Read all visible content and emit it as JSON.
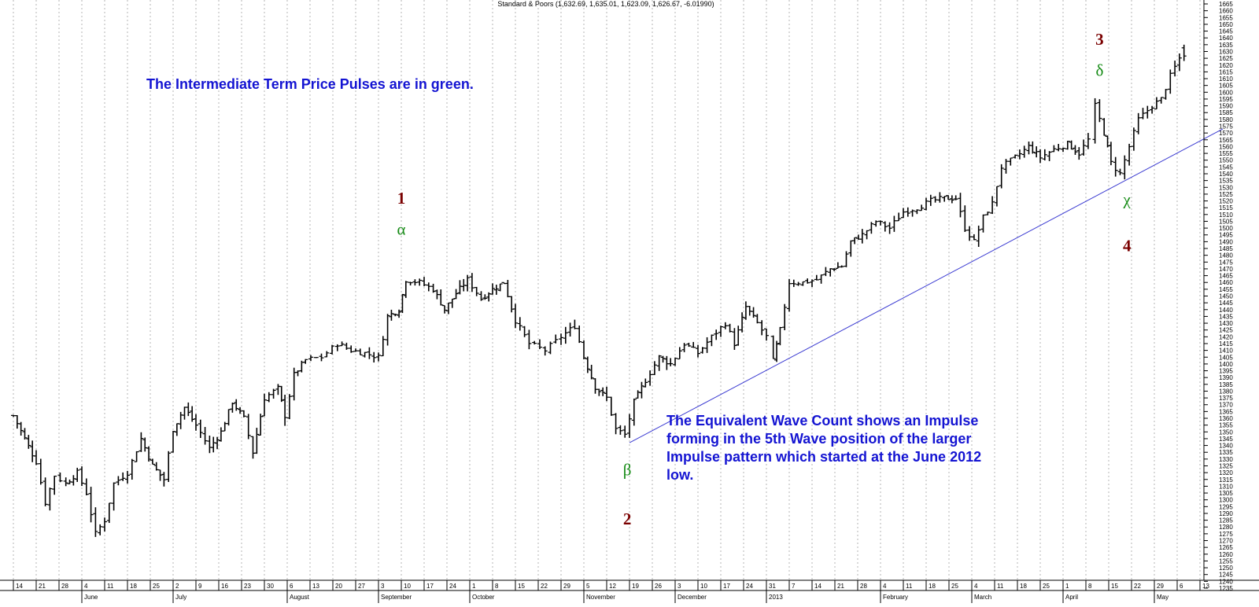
{
  "header": {
    "title": "Standard & Poors (1,632.69, 1,635.01, 1,623.09, 1,626.67, -6.01990)"
  },
  "annotations": {
    "pulses_note": "The Intermediate Term Price Pulses are in green.",
    "wave_count_note": [
      "The Equivalent Wave Count shows an Impulse",
      "forming in the 5th Wave position of the larger",
      "Impulse pattern which started at the June 2012",
      "low."
    ]
  },
  "colors": {
    "bars": "#000000",
    "grid": "#b4b4b4",
    "trendline": "#3c3cd2",
    "wave_numbers": "#7a0000",
    "pulses": "#148a14",
    "note_text": "#1414d2"
  },
  "chart_data": {
    "type": "ohlc",
    "title": "Standard & Poors (1,632.69, 1,635.01, 1,623.09, 1,626.67, -6.01990)",
    "xlabel": "",
    "ylabel": "",
    "ylim": [
      1235,
      1665
    ],
    "y_ticks": [
      1235,
      1240,
      1245,
      1250,
      1255,
      1260,
      1265,
      1270,
      1275,
      1280,
      1285,
      1290,
      1295,
      1300,
      1305,
      1310,
      1315,
      1320,
      1325,
      1330,
      1335,
      1340,
      1345,
      1350,
      1355,
      1360,
      1365,
      1370,
      1375,
      1380,
      1385,
      1390,
      1395,
      1400,
      1405,
      1410,
      1415,
      1420,
      1425,
      1430,
      1435,
      1440,
      1445,
      1450,
      1455,
      1460,
      1465,
      1470,
      1475,
      1480,
      1485,
      1490,
      1495,
      1500,
      1505,
      1510,
      1515,
      1520,
      1525,
      1530,
      1535,
      1540,
      1545,
      1550,
      1555,
      1560,
      1565,
      1570,
      1575,
      1580,
      1585,
      1590,
      1595,
      1600,
      1605,
      1610,
      1615,
      1620,
      1625,
      1630,
      1635,
      1640,
      1645,
      1650,
      1655,
      1660,
      1665
    ],
    "week_labels": [
      "14",
      "21",
      "28",
      "4",
      "11",
      "18",
      "25",
      "2",
      "9",
      "16",
      "23",
      "30",
      "6",
      "13",
      "20",
      "27",
      "3",
      "10",
      "17",
      "24",
      "1",
      "8",
      "15",
      "22",
      "29",
      "5",
      "12",
      "19",
      "26",
      "3",
      "10",
      "17",
      "24",
      "31",
      "7",
      "14",
      "21",
      "28",
      "4",
      "11",
      "18",
      "25",
      "4",
      "11",
      "18",
      "25",
      "1",
      "8",
      "15",
      "22",
      "29",
      "6",
      "13"
    ],
    "months": [
      {
        "label": "June",
        "week_index": 3
      },
      {
        "label": "July",
        "week_index": 7
      },
      {
        "label": "August",
        "week_index": 12
      },
      {
        "label": "September",
        "week_index": 16
      },
      {
        "label": "October",
        "week_index": 20
      },
      {
        "label": "November",
        "week_index": 25
      },
      {
        "label": "December",
        "week_index": 29
      },
      {
        "label": "2013",
        "week_index": 33
      },
      {
        "label": "February",
        "week_index": 38
      },
      {
        "label": "March",
        "week_index": 42
      },
      {
        "label": "April",
        "week_index": 46
      },
      {
        "label": "May",
        "week_index": 50
      }
    ],
    "series": [
      {
        "bar_anchors": [
          {
            "week": 0.0,
            "close": 1362,
            "range": 8
          },
          {
            "week": 0.5,
            "close": 1345,
            "range": 12
          },
          {
            "week": 1.0,
            "close": 1328,
            "range": 10
          },
          {
            "week": 1.4,
            "close": 1298,
            "range": 14
          },
          {
            "week": 1.8,
            "close": 1318,
            "range": 10
          },
          {
            "week": 2.3,
            "close": 1312,
            "range": 8
          },
          {
            "week": 2.8,
            "close": 1320,
            "range": 9
          },
          {
            "week": 3.2,
            "close": 1305,
            "range": 12
          },
          {
            "week": 3.6,
            "close": 1275,
            "range": 14
          },
          {
            "week": 4.0,
            "close": 1285,
            "range": 10
          },
          {
            "week": 4.4,
            "close": 1312,
            "range": 12
          },
          {
            "week": 5.0,
            "close": 1320,
            "range": 10
          },
          {
            "week": 5.6,
            "close": 1345,
            "range": 12
          },
          {
            "week": 6.1,
            "close": 1325,
            "range": 14
          },
          {
            "week": 6.6,
            "close": 1315,
            "range": 12
          },
          {
            "week": 7.0,
            "close": 1352,
            "range": 12
          },
          {
            "week": 7.5,
            "close": 1368,
            "range": 8
          },
          {
            "week": 8.0,
            "close": 1355,
            "range": 10
          },
          {
            "week": 8.6,
            "close": 1338,
            "range": 12
          },
          {
            "week": 9.1,
            "close": 1350,
            "range": 9
          },
          {
            "week": 9.6,
            "close": 1372,
            "range": 8
          },
          {
            "week": 10.1,
            "close": 1360,
            "range": 12
          },
          {
            "week": 10.5,
            "close": 1335,
            "range": 12
          },
          {
            "week": 11.0,
            "close": 1375,
            "range": 12
          },
          {
            "week": 11.6,
            "close": 1382,
            "range": 10
          },
          {
            "week": 11.9,
            "close": 1362,
            "range": 14
          },
          {
            "week": 12.3,
            "close": 1392,
            "range": 10
          },
          {
            "week": 12.8,
            "close": 1403,
            "range": 7
          },
          {
            "week": 13.5,
            "close": 1405,
            "range": 6
          },
          {
            "week": 14.2,
            "close": 1415,
            "range": 8
          },
          {
            "week": 14.8,
            "close": 1410,
            "range": 8
          },
          {
            "week": 15.4,
            "close": 1408,
            "range": 8
          },
          {
            "week": 16.0,
            "close": 1405,
            "range": 8
          },
          {
            "week": 16.4,
            "close": 1435,
            "range": 10
          },
          {
            "week": 16.9,
            "close": 1440,
            "range": 8
          },
          {
            "week": 17.2,
            "close": 1462,
            "range": 12
          },
          {
            "week": 17.8,
            "close": 1460,
            "range": 8
          },
          {
            "week": 18.4,
            "close": 1455,
            "range": 10
          },
          {
            "week": 18.9,
            "close": 1440,
            "range": 12
          },
          {
            "week": 19.4,
            "close": 1452,
            "range": 10
          },
          {
            "week": 19.9,
            "close": 1462,
            "range": 12
          },
          {
            "week": 20.5,
            "close": 1448,
            "range": 10
          },
          {
            "week": 21.0,
            "close": 1455,
            "range": 10
          },
          {
            "week": 21.5,
            "close": 1460,
            "range": 8
          },
          {
            "week": 22.0,
            "close": 1432,
            "range": 12
          },
          {
            "week": 22.6,
            "close": 1415,
            "range": 12
          },
          {
            "week": 23.3,
            "close": 1410,
            "range": 8
          },
          {
            "week": 24.0,
            "close": 1420,
            "range": 12
          },
          {
            "week": 24.6,
            "close": 1428,
            "range": 12
          },
          {
            "week": 25.0,
            "close": 1405,
            "range": 14
          },
          {
            "week": 25.5,
            "close": 1383,
            "range": 12
          },
          {
            "week": 26.0,
            "close": 1375,
            "range": 12
          },
          {
            "week": 26.4,
            "close": 1352,
            "range": 12
          },
          {
            "week": 26.8,
            "close": 1348,
            "range": 8
          },
          {
            "week": 27.2,
            "close": 1372,
            "range": 14
          },
          {
            "week": 27.7,
            "close": 1388,
            "range": 8
          },
          {
            "week": 28.3,
            "close": 1405,
            "range": 10
          },
          {
            "week": 28.8,
            "close": 1400,
            "range": 12
          },
          {
            "week": 29.4,
            "close": 1415,
            "range": 10
          },
          {
            "week": 30.0,
            "close": 1408,
            "range": 10
          },
          {
            "week": 30.6,
            "close": 1420,
            "range": 10
          },
          {
            "week": 31.2,
            "close": 1430,
            "range": 10
          },
          {
            "week": 31.6,
            "close": 1415,
            "range": 10
          },
          {
            "week": 32.1,
            "close": 1442,
            "range": 10
          },
          {
            "week": 32.6,
            "close": 1430,
            "range": 8
          },
          {
            "week": 33.0,
            "close": 1420,
            "range": 10
          },
          {
            "week": 33.3,
            "close": 1402,
            "range": 12
          },
          {
            "week": 33.6,
            "close": 1425,
            "range": 10
          },
          {
            "week": 34.0,
            "close": 1460,
            "range": 10
          },
          {
            "week": 34.6,
            "close": 1460,
            "range": 8
          },
          {
            "week": 35.2,
            "close": 1462,
            "range": 8
          },
          {
            "week": 35.8,
            "close": 1470,
            "range": 8
          },
          {
            "week": 36.3,
            "close": 1472,
            "range": 8
          },
          {
            "week": 36.7,
            "close": 1490,
            "range": 10
          },
          {
            "week": 37.2,
            "close": 1495,
            "range": 8
          },
          {
            "week": 37.8,
            "close": 1505,
            "range": 8
          },
          {
            "week": 38.4,
            "close": 1500,
            "range": 10
          },
          {
            "week": 39.0,
            "close": 1512,
            "range": 10
          },
          {
            "week": 39.6,
            "close": 1515,
            "range": 8
          },
          {
            "week": 40.2,
            "close": 1520,
            "range": 8
          },
          {
            "week": 40.8,
            "close": 1522,
            "range": 7
          },
          {
            "week": 41.3,
            "close": 1522,
            "range": 8
          },
          {
            "week": 41.7,
            "close": 1500,
            "range": 12
          },
          {
            "week": 42.1,
            "close": 1490,
            "range": 12
          },
          {
            "week": 42.5,
            "close": 1508,
            "range": 12
          },
          {
            "week": 42.9,
            "close": 1518,
            "range": 10
          },
          {
            "week": 43.3,
            "close": 1545,
            "range": 8
          },
          {
            "week": 43.9,
            "close": 1552,
            "range": 8
          },
          {
            "week": 44.5,
            "close": 1560,
            "range": 8
          },
          {
            "week": 45.0,
            "close": 1552,
            "range": 10
          },
          {
            "week": 45.6,
            "close": 1558,
            "range": 10
          },
          {
            "week": 46.2,
            "close": 1562,
            "range": 8
          },
          {
            "week": 46.7,
            "close": 1555,
            "range": 10
          },
          {
            "week": 47.1,
            "close": 1565,
            "range": 10
          },
          {
            "week": 47.4,
            "close": 1590,
            "range": 12
          },
          {
            "week": 47.8,
            "close": 1570,
            "range": 12
          },
          {
            "week": 48.1,
            "close": 1548,
            "range": 12
          },
          {
            "week": 48.5,
            "close": 1540,
            "range": 10
          },
          {
            "week": 48.9,
            "close": 1560,
            "range": 10
          },
          {
            "week": 49.3,
            "close": 1580,
            "range": 10
          },
          {
            "week": 49.9,
            "close": 1590,
            "range": 10
          },
          {
            "week": 50.3,
            "close": 1595,
            "range": 8
          },
          {
            "week": 50.7,
            "close": 1612,
            "range": 10
          },
          {
            "week": 51.1,
            "close": 1625,
            "range": 10
          },
          {
            "week": 51.3,
            "close": 1627,
            "range": 12
          }
        ]
      }
    ],
    "trendline": {
      "from": {
        "week": 27.0,
        "price": 1342
      },
      "to": {
        "week": 53.0,
        "price": 1573
      }
    },
    "wave_labels": [
      {
        "text": "1",
        "kind": "wave",
        "week": 17.0,
        "price": 1518
      },
      {
        "text": "α",
        "kind": "pulse",
        "week": 17.0,
        "price": 1495
      },
      {
        "text": "2",
        "kind": "wave",
        "week": 26.9,
        "price": 1282
      },
      {
        "text": "β",
        "kind": "pulse",
        "week": 26.9,
        "price": 1318
      },
      {
        "text": "3",
        "kind": "wave",
        "week": 47.6,
        "price": 1635
      },
      {
        "text": "δ",
        "kind": "pulse",
        "week": 47.6,
        "price": 1612
      },
      {
        "text": "χ",
        "kind": "pulse",
        "week": 48.8,
        "price": 1517
      },
      {
        "text": "4",
        "kind": "wave",
        "week": 48.8,
        "price": 1483
      }
    ]
  }
}
